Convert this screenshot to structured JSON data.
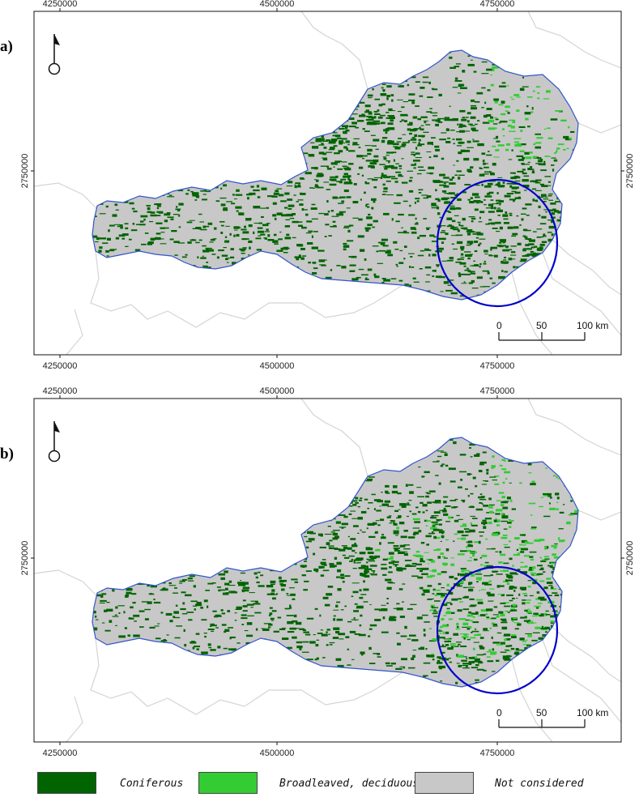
{
  "panels": [
    {
      "label": "a)",
      "x_ticks": [
        "4250000",
        "4500000",
        "4750000"
      ],
      "y_ticks": [
        "2750000"
      ],
      "scale_labels": [
        "0",
        "50",
        "100 km"
      ]
    },
    {
      "label": "b)",
      "x_ticks": [
        "4250000",
        "4500000",
        "4750000"
      ],
      "y_ticks": [
        "2750000"
      ],
      "scale_labels": [
        "0",
        "50",
        "100 km"
      ]
    }
  ],
  "legend": [
    {
      "label": "Coniferous",
      "color": "#006400"
    },
    {
      "label": "Broadleaved, deciduous",
      "color": "#33cc33"
    },
    {
      "label": "Not considered",
      "color": "#c8c8c8"
    }
  ],
  "highlight_color": "#0000cc",
  "border_color": "#3355cc"
}
